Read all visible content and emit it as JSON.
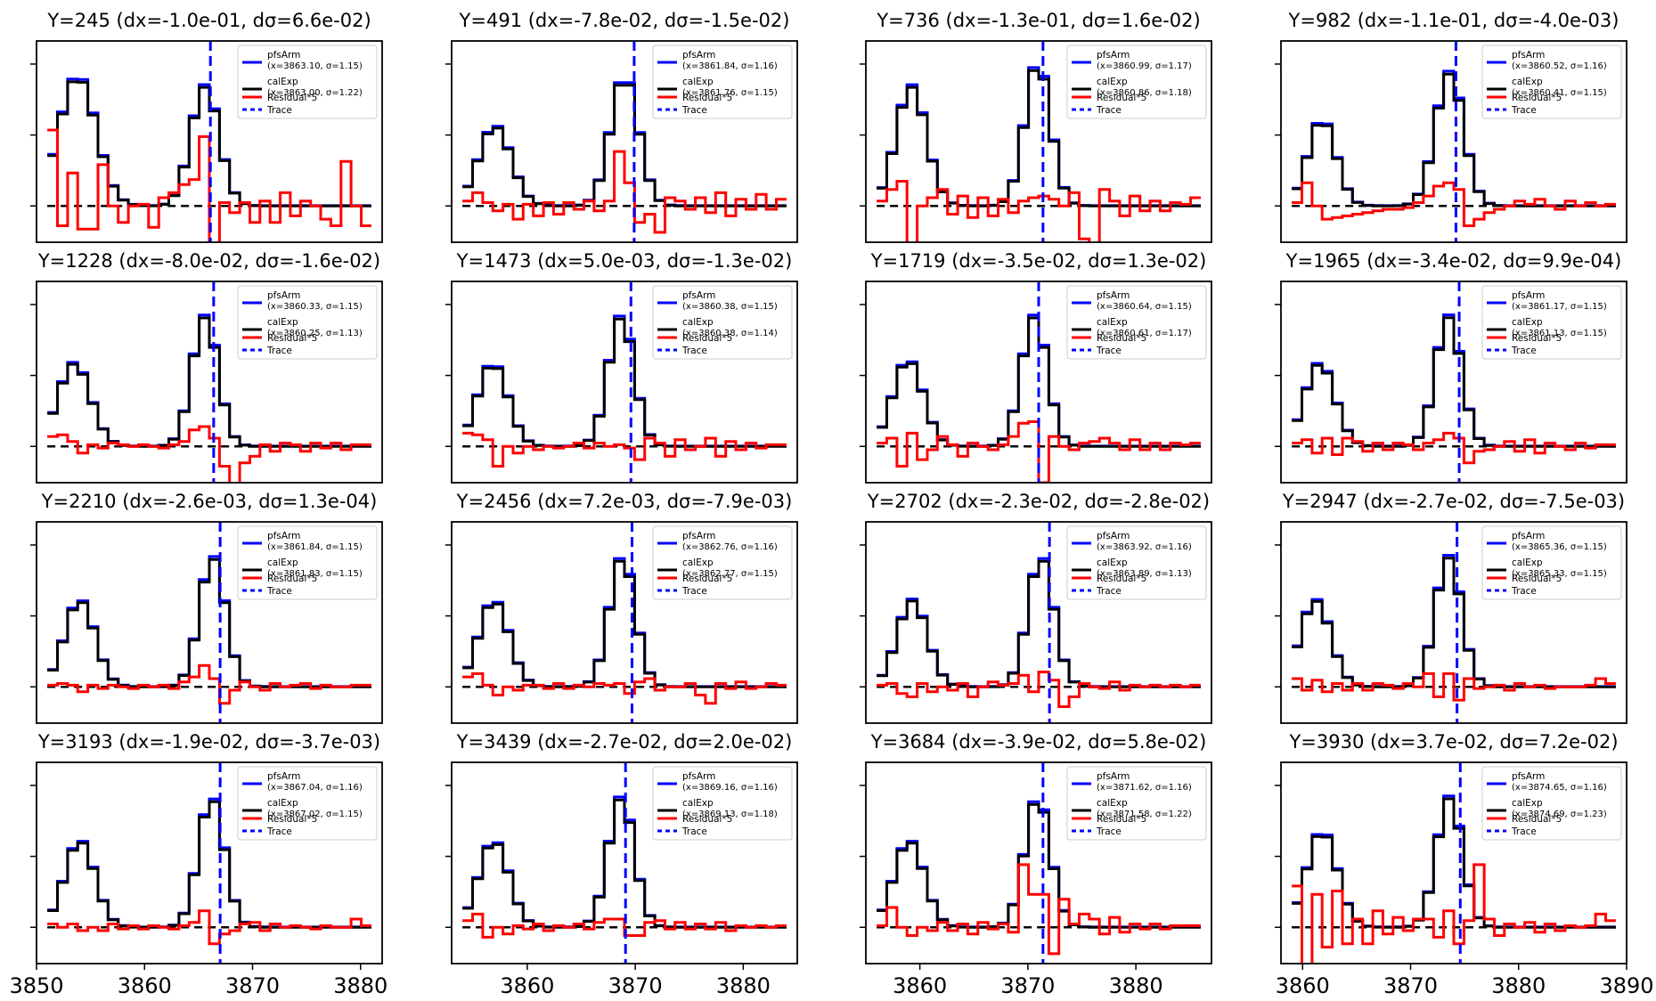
{
  "figure": {
    "legend_labels": {
      "pfsarm": "pfsArm",
      "calexp": "calExp",
      "residual": "Residual*5",
      "trace": "Trace"
    },
    "colors": {
      "pfsarm": "#0000ff",
      "calexp": "#000000",
      "residual": "#ff0000",
      "trace": "#0000ff",
      "zero_line": "#000000"
    }
  },
  "chart_data": [
    {
      "type": "line",
      "title": "Y=245 (dx=-1.0e-01, dσ=6.6e-02)",
      "legend": {
        "pfsarm_fit": "(x=3863.10, σ=1.15)",
        "calexp_fit": "(x=3863.00, σ=1.22)"
      },
      "xlim": [
        3850,
        3882
      ],
      "xticks": [],
      "trace_x": 3866.1,
      "peaks": [
        {
          "x": 3853.8,
          "w": 1.7,
          "a": 0.78
        },
        {
          "x": 3865.6,
          "w": 1.3,
          "a": 0.72
        }
      ],
      "residual": [
        0.46,
        -0.12,
        0.2,
        -0.14,
        -0.14,
        0.25,
        0.0,
        -0.1,
        0.0,
        0.01,
        -0.13,
        0.05,
        0.08,
        0.13,
        0.16,
        0.42,
        -0.4,
        0.02,
        -0.04,
        0.02,
        -0.1,
        0.03,
        -0.1,
        0.08,
        -0.06,
        0.03,
        0.0,
        -0.08,
        -0.12,
        0.27,
        0.0,
        -0.12
      ]
    },
    {
      "type": "line",
      "title": "Y=491 (dx=-7.8e-02, dσ=-1.5e-02)",
      "legend": {
        "pfsarm_fit": "(x=3861.84, σ=1.16)",
        "calexp_fit": "(x=3861.76, σ=1.15)"
      },
      "xlim": [
        3853,
        3885
      ],
      "xticks": [],
      "trace_x": 3869.9,
      "peaks": [
        {
          "x": 3857.0,
          "w": 1.5,
          "a": 0.48
        },
        {
          "x": 3869.0,
          "w": 1.3,
          "a": 0.78
        }
      ],
      "residual": [
        0.03,
        0.08,
        0.02,
        -0.03,
        0.01,
        -0.08,
        0.01,
        -0.06,
        0.02,
        -0.05,
        0.02,
        -0.02,
        0.03,
        -0.03,
        0.03,
        0.33,
        0.14,
        -0.1,
        -0.05,
        -0.16,
        0.05,
        0.03,
        -0.02,
        0.05,
        -0.04,
        0.08,
        -0.06,
        0.04,
        -0.02,
        0.07,
        -0.02,
        0.04
      ]
    },
    {
      "type": "line",
      "title": "Y=736 (dx=-1.3e-01, dσ=1.6e-02)",
      "legend": {
        "pfsarm_fit": "(x=3860.99, σ=1.17)",
        "calexp_fit": "(x=3860.86, σ=1.18)"
      },
      "xlim": [
        3855,
        3887
      ],
      "xticks": [],
      "trace_x": 3871.4,
      "peaks": [
        {
          "x": 3859.2,
          "w": 1.4,
          "a": 0.72
        },
        {
          "x": 3870.9,
          "w": 1.2,
          "a": 0.86
        }
      ],
      "residual": [
        0.03,
        0.1,
        0.15,
        -0.3,
        0.0,
        0.05,
        0.1,
        -0.05,
        0.06,
        -0.07,
        0.05,
        -0.06,
        0.04,
        -0.04,
        0.03,
        0.05,
        0.06,
        0.04,
        0.0,
        0.08,
        -0.2,
        -0.3,
        0.1,
        0.03,
        -0.06,
        0.06,
        -0.03,
        0.03,
        -0.03,
        0.02,
        0.01,
        0.05
      ]
    },
    {
      "type": "line",
      "title": "Y=982 (dx=-1.1e-01, dσ=-4.0e-03)",
      "legend": {
        "pfsarm_fit": "(x=3860.52, σ=1.16)",
        "calexp_fit": "(x=3860.41, σ=1.15)"
      },
      "xlim": [
        3858,
        3890
      ],
      "xticks": [],
      "trace_x": 3874.2,
      "peaks": [
        {
          "x": 3861.8,
          "w": 1.3,
          "a": 0.52
        },
        {
          "x": 3873.6,
          "w": 1.3,
          "a": 0.8
        }
      ],
      "residual": [
        0.02,
        0.14,
        0.0,
        -0.08,
        -0.07,
        -0.06,
        -0.05,
        -0.04,
        -0.03,
        -0.02,
        -0.02,
        -0.01,
        0.02,
        0.06,
        0.12,
        0.14,
        0.1,
        -0.12,
        -0.08,
        -0.04,
        -0.02,
        0.0,
        0.03,
        0.01,
        0.04,
        0.0,
        -0.02,
        0.03,
        0.0,
        0.02,
        0.0,
        0.01
      ]
    },
    {
      "type": "line",
      "title": "Y=1228 (dx=-8.0e-02, dσ=-1.6e-02)",
      "legend": {
        "pfsarm_fit": "(x=3860.33, σ=1.15)",
        "calexp_fit": "(x=3860.25, σ=1.13)"
      },
      "xlim": [
        3850,
        3882
      ],
      "xticks": [],
      "trace_x": 3866.4,
      "peaks": [
        {
          "x": 3853.5,
          "w": 1.5,
          "a": 0.5
        },
        {
          "x": 3865.6,
          "w": 1.2,
          "a": 0.78
        }
      ],
      "residual": [
        0.06,
        0.07,
        0.03,
        -0.04,
        0.01,
        -0.01,
        0.02,
        0.01,
        0.0,
        0.01,
        0.0,
        -0.01,
        0.01,
        0.03,
        0.1,
        0.12,
        0.05,
        -0.12,
        -0.25,
        -0.1,
        -0.06,
        0.01,
        -0.03,
        0.02,
        0.01,
        -0.03,
        0.02,
        -0.01,
        0.02,
        -0.02,
        0.01,
        0.01
      ]
    },
    {
      "type": "line",
      "title": "Y=1473 (dx=5.0e-03, dσ=-1.3e-02)",
      "legend": {
        "pfsarm_fit": "(x=3860.38, σ=1.15)",
        "calexp_fit": "(x=3860.38, σ=1.14)"
      },
      "xlim": [
        3853,
        3885
      ],
      "xticks": [],
      "trace_x": 3869.6,
      "peaks": [
        {
          "x": 3856.8,
          "w": 1.4,
          "a": 0.5
        },
        {
          "x": 3868.7,
          "w": 1.2,
          "a": 0.78
        }
      ],
      "residual": [
        0.08,
        0.07,
        0.04,
        -0.12,
        0.0,
        -0.04,
        0.0,
        -0.02,
        0.0,
        -0.01,
        0.0,
        0.02,
        -0.01,
        0.02,
        0.0,
        0.01,
        -0.01,
        -0.08,
        0.05,
        0.02,
        -0.06,
        0.04,
        -0.02,
        0.0,
        0.05,
        -0.06,
        0.03,
        -0.02,
        0.02,
        -0.01,
        0.01,
        0.01
      ]
    },
    {
      "type": "line",
      "title": "Y=1719 (dx=-3.5e-02, dσ=1.3e-02)",
      "legend": {
        "pfsarm_fit": "(x=3860.64, σ=1.15)",
        "calexp_fit": "(x=3860.61, σ=1.17)"
      },
      "xlim": [
        3855,
        3887
      ],
      "xticks": [],
      "trace_x": 3871.0,
      "peaks": [
        {
          "x": 3858.9,
          "w": 1.4,
          "a": 0.52
        },
        {
          "x": 3870.6,
          "w": 1.2,
          "a": 0.78
        }
      ],
      "residual": [
        0.02,
        0.05,
        -0.12,
        0.08,
        -0.08,
        -0.02,
        0.06,
        0.01,
        -0.06,
        0.02,
        0.0,
        -0.02,
        0.01,
        0.06,
        0.14,
        0.15,
        -0.22,
        0.06,
        0.0,
        -0.02,
        0.02,
        0.03,
        0.05,
        0.02,
        -0.02,
        0.04,
        -0.02,
        0.02,
        -0.02,
        0.02,
        0.01,
        0.02
      ]
    },
    {
      "type": "line",
      "title": "Y=1965 (dx=-3.4e-02, dσ=9.9e-04)",
      "legend": {
        "pfsarm_fit": "(x=3861.17, σ=1.15)",
        "calexp_fit": "(x=3861.13, σ=1.15)"
      },
      "xlim": [
        3858,
        3890
      ],
      "xticks": [],
      "trace_x": 3874.5,
      "peaks": [
        {
          "x": 3861.6,
          "w": 1.4,
          "a": 0.5
        },
        {
          "x": 3873.5,
          "w": 1.2,
          "a": 0.78
        }
      ],
      "residual": [
        0.02,
        0.04,
        -0.04,
        0.05,
        -0.05,
        0.05,
        0.03,
        -0.03,
        0.02,
        -0.02,
        0.02,
        0.01,
        -0.02,
        0.02,
        0.04,
        0.08,
        0.05,
        -0.1,
        -0.03,
        -0.02,
        0.0,
        0.03,
        -0.03,
        0.04,
        -0.04,
        0.02,
        0.0,
        -0.02,
        0.02,
        -0.01,
        0.01,
        0.01
      ]
    },
    {
      "type": "line",
      "title": "Y=2210 (dx=-2.6e-03, dσ=1.3e-04)",
      "legend": {
        "pfsarm_fit": "(x=3861.84, σ=1.15)",
        "calexp_fit": "(x=3861.83, σ=1.15)"
      },
      "xlim": [
        3850,
        3882
      ],
      "xticks": [],
      "trace_x": 3867.0,
      "peaks": [
        {
          "x": 3854.0,
          "w": 1.4,
          "a": 0.52
        },
        {
          "x": 3866.3,
          "w": 1.2,
          "a": 0.78
        }
      ],
      "residual": [
        0.01,
        0.02,
        0.01,
        -0.03,
        0.01,
        -0.01,
        0.01,
        0.0,
        -0.01,
        0.01,
        0.0,
        0.01,
        -0.01,
        0.03,
        0.06,
        0.13,
        0.05,
        -0.1,
        -0.02,
        0.03,
        0.0,
        -0.02,
        0.02,
        0.0,
        0.01,
        0.02,
        -0.01,
        0.01,
        0.0,
        0.0,
        0.01,
        0.01
      ]
    },
    {
      "type": "line",
      "title": "Y=2456 (dx=7.2e-03, dσ=-7.9e-03)",
      "legend": {
        "pfsarm_fit": "(x=3862.76, σ=1.16)",
        "calexp_fit": "(x=3862.77, σ=1.15)"
      },
      "xlim": [
        3853,
        3885
      ],
      "xticks": [],
      "trace_x": 3869.7,
      "peaks": [
        {
          "x": 3856.9,
          "w": 1.4,
          "a": 0.52
        },
        {
          "x": 3868.8,
          "w": 1.2,
          "a": 0.78
        }
      ],
      "residual": [
        0.06,
        0.08,
        0.01,
        -0.05,
        0.0,
        -0.02,
        0.01,
        0.01,
        -0.01,
        0.02,
        -0.01,
        0.01,
        0.0,
        0.02,
        0.01,
        0.02,
        -0.04,
        0.03,
        0.05,
        -0.02,
        0.0,
        0.0,
        0.02,
        -0.05,
        -0.1,
        0.02,
        -0.01,
        0.03,
        -0.01,
        0.0,
        0.02,
        0.01
      ]
    },
    {
      "type": "line",
      "title": "Y=2702 (dx=-2.3e-02, dσ=-2.8e-02)",
      "legend": {
        "pfsarm_fit": "(x=3863.92, σ=1.16)",
        "calexp_fit": "(x=3863.89, σ=1.13)"
      },
      "xlim": [
        3855,
        3887
      ],
      "xticks": [],
      "trace_x": 3872.0,
      "peaks": [
        {
          "x": 3859.3,
          "w": 1.4,
          "a": 0.52
        },
        {
          "x": 3871.2,
          "w": 1.2,
          "a": 0.78
        }
      ],
      "residual": [
        0.01,
        0.02,
        -0.04,
        -0.06,
        0.02,
        -0.03,
        0.0,
        -0.02,
        0.02,
        -0.06,
        0.0,
        0.03,
        0.01,
        0.02,
        0.07,
        -0.03,
        0.09,
        0.04,
        -0.12,
        -0.06,
        0.02,
        0.0,
        -0.01,
        0.03,
        -0.02,
        0.01,
        0.0,
        0.01,
        0.0,
        0.01,
        0.0,
        0.01
      ]
    },
    {
      "type": "line",
      "title": "Y=2947 (dx=-2.7e-02, dσ=-7.5e-03)",
      "legend": {
        "pfsarm_fit": "(x=3865.36, σ=1.15)",
        "calexp_fit": "(x=3865.33, σ=1.15)"
      },
      "xlim": [
        3858,
        3890
      ],
      "xticks": [],
      "trace_x": 3874.3,
      "peaks": [
        {
          "x": 3861.2,
          "w": 1.4,
          "a": 0.52
        },
        {
          "x": 3873.5,
          "w": 1.2,
          "a": 0.78
        }
      ],
      "residual": [
        0.05,
        -0.02,
        0.04,
        -0.03,
        0.02,
        -0.02,
        0.02,
        -0.02,
        0.02,
        0.01,
        -0.01,
        0.02,
        0.0,
        0.08,
        -0.06,
        0.08,
        -0.08,
        0.05,
        -0.01,
        0.0,
        0.01,
        -0.02,
        0.02,
        0.0,
        0.01,
        -0.01,
        0.0,
        0.0,
        0.0,
        0.01,
        0.05,
        0.02
      ]
    },
    {
      "type": "line",
      "title": "Y=3193 (dx=-1.9e-02, dσ=-3.7e-03)",
      "legend": {
        "pfsarm_fit": "(x=3867.04, σ=1.16)",
        "calexp_fit": "(x=3867.02, σ=1.15)"
      },
      "xlim": [
        3850,
        3882
      ],
      "xticks": [
        3850,
        3860,
        3870,
        3880
      ],
      "trace_x": 3867.0,
      "peaks": [
        {
          "x": 3854.0,
          "w": 1.4,
          "a": 0.52
        },
        {
          "x": 3866.2,
          "w": 1.2,
          "a": 0.78
        }
      ],
      "residual": [
        0.02,
        0.0,
        0.02,
        -0.02,
        0.0,
        -0.02,
        0.02,
        -0.01,
        0.01,
        -0.01,
        0.01,
        0.0,
        -0.01,
        0.01,
        0.03,
        0.1,
        -0.1,
        -0.04,
        -0.02,
        0.02,
        0.03,
        -0.02,
        0.02,
        0.0,
        0.01,
        0.0,
        -0.01,
        0.01,
        0.0,
        0.0,
        0.05,
        0.01
      ]
    },
    {
      "type": "line",
      "title": "Y=3439 (dx=-2.7e-02, dσ=2.0e-02)",
      "legend": {
        "pfsarm_fit": "(x=3869.16, σ=1.16)",
        "calexp_fit": "(x=3869.13, σ=1.18)"
      },
      "xlim": [
        3853,
        3885
      ],
      "xticks": [
        3860,
        3870,
        3880
      ],
      "trace_x": 3869.1,
      "peaks": [
        {
          "x": 3856.9,
          "w": 1.4,
          "a": 0.52
        },
        {
          "x": 3868.7,
          "w": 1.2,
          "a": 0.78
        }
      ],
      "residual": [
        0.04,
        0.08,
        -0.06,
        0.0,
        -0.04,
        0.01,
        -0.01,
        0.02,
        -0.02,
        0.01,
        0.0,
        0.02,
        -0.01,
        0.03,
        0.05,
        0.05,
        -0.05,
        -0.05,
        0.03,
        0.04,
        -0.01,
        0.03,
        -0.01,
        0.02,
        -0.01,
        0.03,
        -0.02,
        0.01,
        0.0,
        0.01,
        0.0,
        0.01
      ]
    },
    {
      "type": "line",
      "title": "Y=3684 (dx=-3.9e-02, dσ=5.8e-02)",
      "legend": {
        "pfsarm_fit": "(x=3871.62, σ=1.16)",
        "calexp_fit": "(x=3871.58, σ=1.22)"
      },
      "xlim": [
        3855,
        3887
      ],
      "xticks": [
        3860,
        3870,
        3880
      ],
      "trace_x": 3871.4,
      "peaks": [
        {
          "x": 3859.0,
          "w": 1.4,
          "a": 0.52
        },
        {
          "x": 3870.9,
          "w": 1.2,
          "a": 0.78
        }
      ],
      "residual": [
        0.01,
        0.12,
        0.0,
        -0.05,
        0.0,
        -0.02,
        0.03,
        -0.02,
        0.02,
        -0.04,
        0.03,
        -0.01,
        0.02,
        -0.03,
        0.38,
        0.2,
        0.2,
        -0.16,
        0.17,
        0.02,
        0.08,
        0.05,
        -0.04,
        0.06,
        -0.03,
        0.02,
        -0.01,
        0.02,
        -0.01,
        0.01,
        0.01,
        0.01
      ]
    },
    {
      "type": "line",
      "title": "Y=3930 (dx=3.7e-02, dσ=7.2e-02)",
      "legend": {
        "pfsarm_fit": "(x=3874.65, σ=1.16)",
        "calexp_fit": "(x=3874.69, σ=1.23)"
      },
      "xlim": [
        3858,
        3890
      ],
      "xticks": [
        3860,
        3870,
        3880,
        3890
      ],
      "trace_x": 3874.6,
      "peaks": [
        {
          "x": 3861.8,
          "w": 1.4,
          "a": 0.58
        },
        {
          "x": 3873.6,
          "w": 1.2,
          "a": 0.78
        }
      ],
      "residual": [
        0.25,
        -0.4,
        0.2,
        -0.12,
        0.22,
        -0.1,
        0.05,
        -0.1,
        0.1,
        -0.04,
        0.06,
        -0.02,
        0.05,
        0.05,
        -0.06,
        0.1,
        -0.1,
        0.04,
        0.38,
        0.05,
        -0.05,
        0.02,
        0.0,
        0.03,
        -0.03,
        0.02,
        -0.02,
        0.01,
        0.0,
        0.01,
        0.08,
        0.04
      ]
    }
  ]
}
